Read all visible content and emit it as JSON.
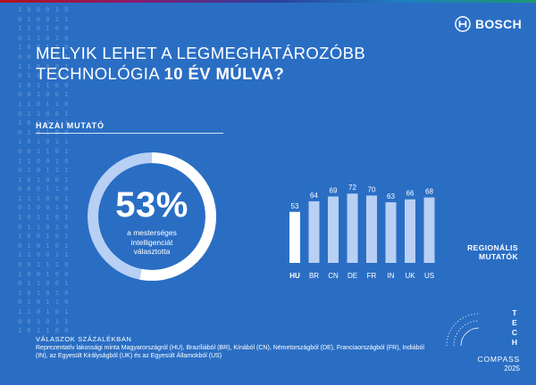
{
  "brand": {
    "name": "BOSCH",
    "icon": "bosch-armature-icon"
  },
  "title": {
    "line1": "MELYIK LEHET A LEGMEGHATÁROZÓBB",
    "line2_plain": "TECHNOLÓGIA ",
    "line2_bold": "10 ÉV MÚLVA?"
  },
  "national": {
    "label": "HAZAI MUTATÓ",
    "percent_text": "53%",
    "percent": 53,
    "caption_lines": [
      "a mesterséges",
      "intelligenciát",
      "választotta"
    ]
  },
  "regional_label": [
    "REGIONÁLIS",
    "MUTATÓK"
  ],
  "chart_data": [
    {
      "type": "pie",
      "values": [
        53,
        47
      ],
      "center_label": "53%",
      "colors": {
        "filled": "#ffffff",
        "remainder": "#b8d0f4"
      }
    },
    {
      "type": "bar",
      "categories": [
        "HU",
        "BR",
        "CN",
        "DE",
        "FR",
        "IN",
        "UK",
        "US"
      ],
      "values": [
        53,
        64,
        69,
        72,
        70,
        63,
        66,
        68
      ],
      "ylim": [
        0,
        100
      ],
      "grid": false,
      "colors": {
        "highlight": "#ffffff",
        "others": "#b8d0f4"
      }
    }
  ],
  "colors": {
    "background": "#2a6ec4",
    "text": "#ffffff"
  },
  "footer": {
    "title": "VÁLASZOK SZÁZALÉKBAN",
    "note": "Reprezentatív lakossági minta Magyarországról (HU), Brazíliából (BR), Kínából (CN), Németországból (DE), Franciaországból (FR), Indiából (IN), az Egyesült Királyságból (UK) és az Egyesült Államokból (US)"
  },
  "tech_compass": {
    "letters": [
      "T",
      "E",
      "C",
      "H"
    ],
    "word": "COMPASS",
    "year": "2025"
  },
  "binary_rows": [
    "1 0 0 0 1 0 1",
    "0 1 0 0 1 1 0",
    "1 1 0 1 0 0 1",
    "0 1 1 0 1 0 0",
    "1 0 0 1 1 0 1",
    "0 0 1 0 1 1 0",
    "1 1 0 0 0 1 1",
    "0 1 0 1 1 0 0",
    "1 0 1 1 0 0 1",
    "0 0 1 0 0 1 1",
    "1 1 0 1 1 0 0",
    "0 1 1 0 0 1 0",
    "1 0 0 0 1 1 1",
    "0 1 0 1 0 0 1",
    "1 0 1 0 1 1 0",
    "0 0 1 1 0 1 0",
    "1 1 0 0 1 0 1",
    "0 1 0 1 1 1 0",
    "1 0 1 0 0 1 1",
    "0 0 0 1 1 0 1",
    "1 1 1 0 0 1 0",
    "0 1 0 0 1 0 1",
    "1 0 1 1 0 1 0",
    "0 1 1 0 1 0 1",
    "1 0 0 1 0 1 1",
    "0 1 0 1 0 1 0",
    "1 1 0 0 1 1 0",
    "0 0 1 1 1 0 1",
    "1 0 0 1 0 0 1",
    "0 1 1 0 0 1 1",
    "1 0 1 0 1 0 0",
    "0 1 0 1 1 0 1",
    "1 1 0 1 0 1 0",
    "0 0 1 0 1 1 1",
    "1 0 1 1 0 0 0"
  ]
}
